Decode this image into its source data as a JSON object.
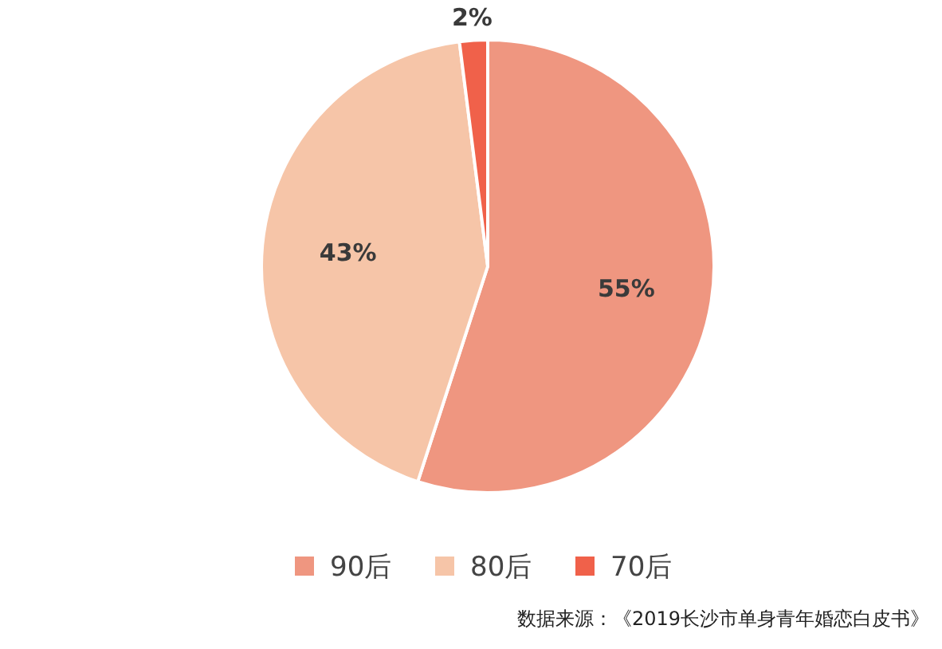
{
  "chart_data": {
    "type": "pie",
    "categories": [
      "90后",
      "80后",
      "70后"
    ],
    "values": [
      55,
      43,
      2
    ],
    "value_labels": [
      "55%",
      "43%",
      "2%"
    ],
    "colors": [
      "#ef9680",
      "#f6c5a8",
      "#f0614a"
    ],
    "legend": "bottom",
    "annotations": [
      "数据来源：《2019长沙市单身青年婚恋白皮书》"
    ]
  }
}
